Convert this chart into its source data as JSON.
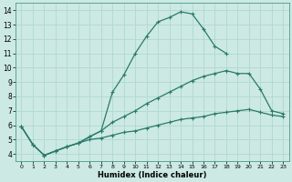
{
  "xlabel": "Humidex (Indice chaleur)",
  "ylabel": "",
  "bg_color": "#cce9e4",
  "grid_color": "#b0d8d0",
  "line_color": "#2a7a6a",
  "xlim": [
    -0.5,
    23.5
  ],
  "ylim": [
    3.5,
    14.5
  ],
  "xticks": [
    0,
    1,
    2,
    3,
    4,
    5,
    6,
    7,
    8,
    9,
    10,
    11,
    12,
    13,
    14,
    15,
    16,
    17,
    18,
    19,
    20,
    21,
    22,
    23
  ],
  "yticks": [
    4,
    5,
    6,
    7,
    8,
    9,
    10,
    11,
    12,
    13,
    14
  ],
  "series1_x": [
    0,
    1,
    2,
    3,
    4,
    5,
    6,
    7,
    8,
    9,
    10,
    11,
    12,
    13,
    14,
    15,
    16,
    17,
    18,
    19,
    20,
    21,
    22,
    23
  ],
  "series1_y": [
    5.9,
    4.65,
    3.9,
    4.2,
    4.5,
    4.75,
    5.2,
    5.6,
    8.3,
    9.5,
    11.0,
    12.2,
    13.2,
    13.5,
    13.9,
    13.75,
    12.7,
    11.5,
    11.0,
    null,
    null,
    null,
    null,
    null
  ],
  "series2_x": [
    0,
    1,
    2,
    3,
    4,
    5,
    6,
    7,
    8,
    9,
    10,
    11,
    12,
    13,
    14,
    15,
    16,
    17,
    18,
    19,
    20,
    21,
    22,
    23
  ],
  "series2_y": [
    5.9,
    4.65,
    3.9,
    4.2,
    4.5,
    4.75,
    5.2,
    5.6,
    6.2,
    6.6,
    7.0,
    7.5,
    7.9,
    8.3,
    8.7,
    9.1,
    9.4,
    9.6,
    9.8,
    9.6,
    9.6,
    8.5,
    7.0,
    6.8
  ],
  "series3_x": [
    0,
    1,
    2,
    3,
    4,
    5,
    6,
    7,
    8,
    9,
    10,
    11,
    12,
    13,
    14,
    15,
    16,
    17,
    18,
    19,
    20,
    21,
    22,
    23
  ],
  "series3_y": [
    5.9,
    4.65,
    3.9,
    4.2,
    4.5,
    4.75,
    5.0,
    5.1,
    5.3,
    5.5,
    5.6,
    5.8,
    6.0,
    6.2,
    6.4,
    6.5,
    6.6,
    6.8,
    6.9,
    7.0,
    7.1,
    6.9,
    6.7,
    6.6
  ]
}
